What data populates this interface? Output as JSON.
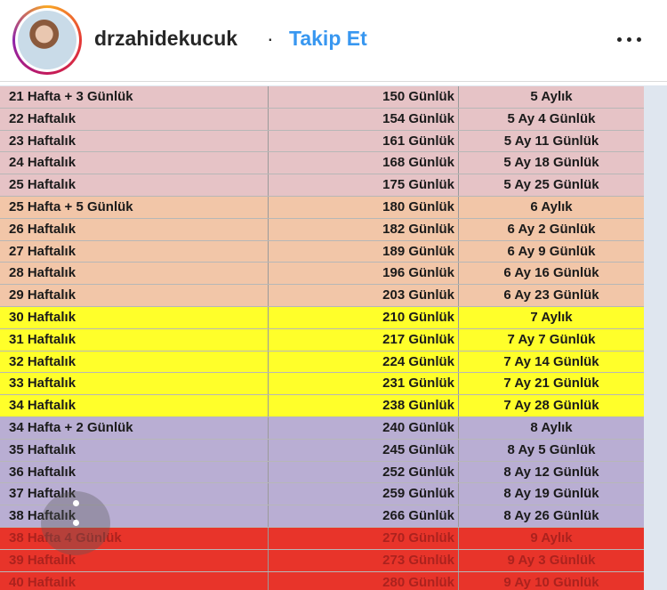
{
  "header": {
    "username": "drzahidekucuk",
    "separator": "·",
    "follow_label": "Takip Et",
    "more_icon": "more-horizontal-icon"
  },
  "colors": {
    "pink": "#e6c3c6",
    "peach": "#f2c6a8",
    "yellow": "#ffff2a",
    "lavender": "#b9aed3",
    "red": "#e8342a",
    "link": "#3897f0"
  },
  "table": {
    "rows": [
      {
        "weeks": "21 Hafta + 3 Günlük",
        "days": "150 Günlük",
        "months": "5 Aylık",
        "color": "#e6c3c6"
      },
      {
        "weeks": "22 Haftalık",
        "days": "154 Günlük",
        "months": "5 Ay 4 Günlük",
        "color": "#e6c3c6"
      },
      {
        "weeks": "23 Haftalık",
        "days": "161 Günlük",
        "months": "5 Ay 11 Günlük",
        "color": "#e6c3c6"
      },
      {
        "weeks": "24 Haftalık",
        "days": "168 Günlük",
        "months": "5 Ay 18 Günlük",
        "color": "#e6c3c6"
      },
      {
        "weeks": "25 Haftalık",
        "days": "175 Günlük",
        "months": "5 Ay 25 Günlük",
        "color": "#e6c3c6"
      },
      {
        "weeks": "25 Hafta + 5 Günlük",
        "days": "180 Günlük",
        "months": "6 Aylık",
        "color": "#f2c6a8"
      },
      {
        "weeks": "26 Haftalık",
        "days": "182 Günlük",
        "months": "6 Ay 2 Günlük",
        "color": "#f2c6a8"
      },
      {
        "weeks": "27 Haftalık",
        "days": "189 Günlük",
        "months": "6 Ay 9 Günlük",
        "color": "#f2c6a8"
      },
      {
        "weeks": "28 Haftalık",
        "days": "196 Günlük",
        "months": "6 Ay 16 Günlük",
        "color": "#f2c6a8"
      },
      {
        "weeks": "29 Haftalık",
        "days": "203 Günlük",
        "months": "6 Ay 23 Günlük",
        "color": "#f2c6a8"
      },
      {
        "weeks": "30 Haftalık",
        "days": "210 Günlük",
        "months": "7 Aylık",
        "color": "#ffff2a"
      },
      {
        "weeks": "31 Haftalık",
        "days": "217 Günlük",
        "months": "7 Ay 7 Günlük",
        "color": "#ffff2a"
      },
      {
        "weeks": "32 Haftalık",
        "days": "224 Günlük",
        "months": "7 Ay 14 Günlük",
        "color": "#ffff2a"
      },
      {
        "weeks": "33 Haftalık",
        "days": "231 Günlük",
        "months": "7 Ay 21 Günlük",
        "color": "#ffff2a"
      },
      {
        "weeks": "34 Haftalık",
        "days": "238 Günlük",
        "months": "7 Ay 28 Günlük",
        "color": "#ffff2a"
      },
      {
        "weeks": "34 Hafta + 2 Günlük",
        "days": "240 Günlük",
        "months": "8 Aylık",
        "color": "#b9aed3"
      },
      {
        "weeks": "35 Haftalık",
        "days": "245 Günlük",
        "months": "8 Ay 5 Günlük",
        "color": "#b9aed3"
      },
      {
        "weeks": "36 Haftalık",
        "days": "252 Günlük",
        "months": "8 Ay 12 Günlük",
        "color": "#b9aed3"
      },
      {
        "weeks": "37 Haftalık",
        "days": "259 Günlük",
        "months": "8 Ay 19 Günlük",
        "color": "#b9aed3"
      },
      {
        "weeks": "38 Haftalık",
        "days": "266 Günlük",
        "months": "8 Ay 26 Günlük",
        "color": "#b9aed3"
      },
      {
        "weeks": "38 Hafta 4 Günlük",
        "days": "270 Günlük",
        "months": "9 Aylık",
        "color": "#e8342a",
        "faded": true
      },
      {
        "weeks": "39 Haftalık",
        "days": "273 Günlük",
        "months": "9 Ay 3 Günlük",
        "color": "#e8342a",
        "faded": true
      },
      {
        "weeks": "40 Haftalık",
        "days": "280 Günlük",
        "months": "9 Ay 10 Günlük",
        "color": "#e8342a",
        "faded": true
      }
    ]
  }
}
